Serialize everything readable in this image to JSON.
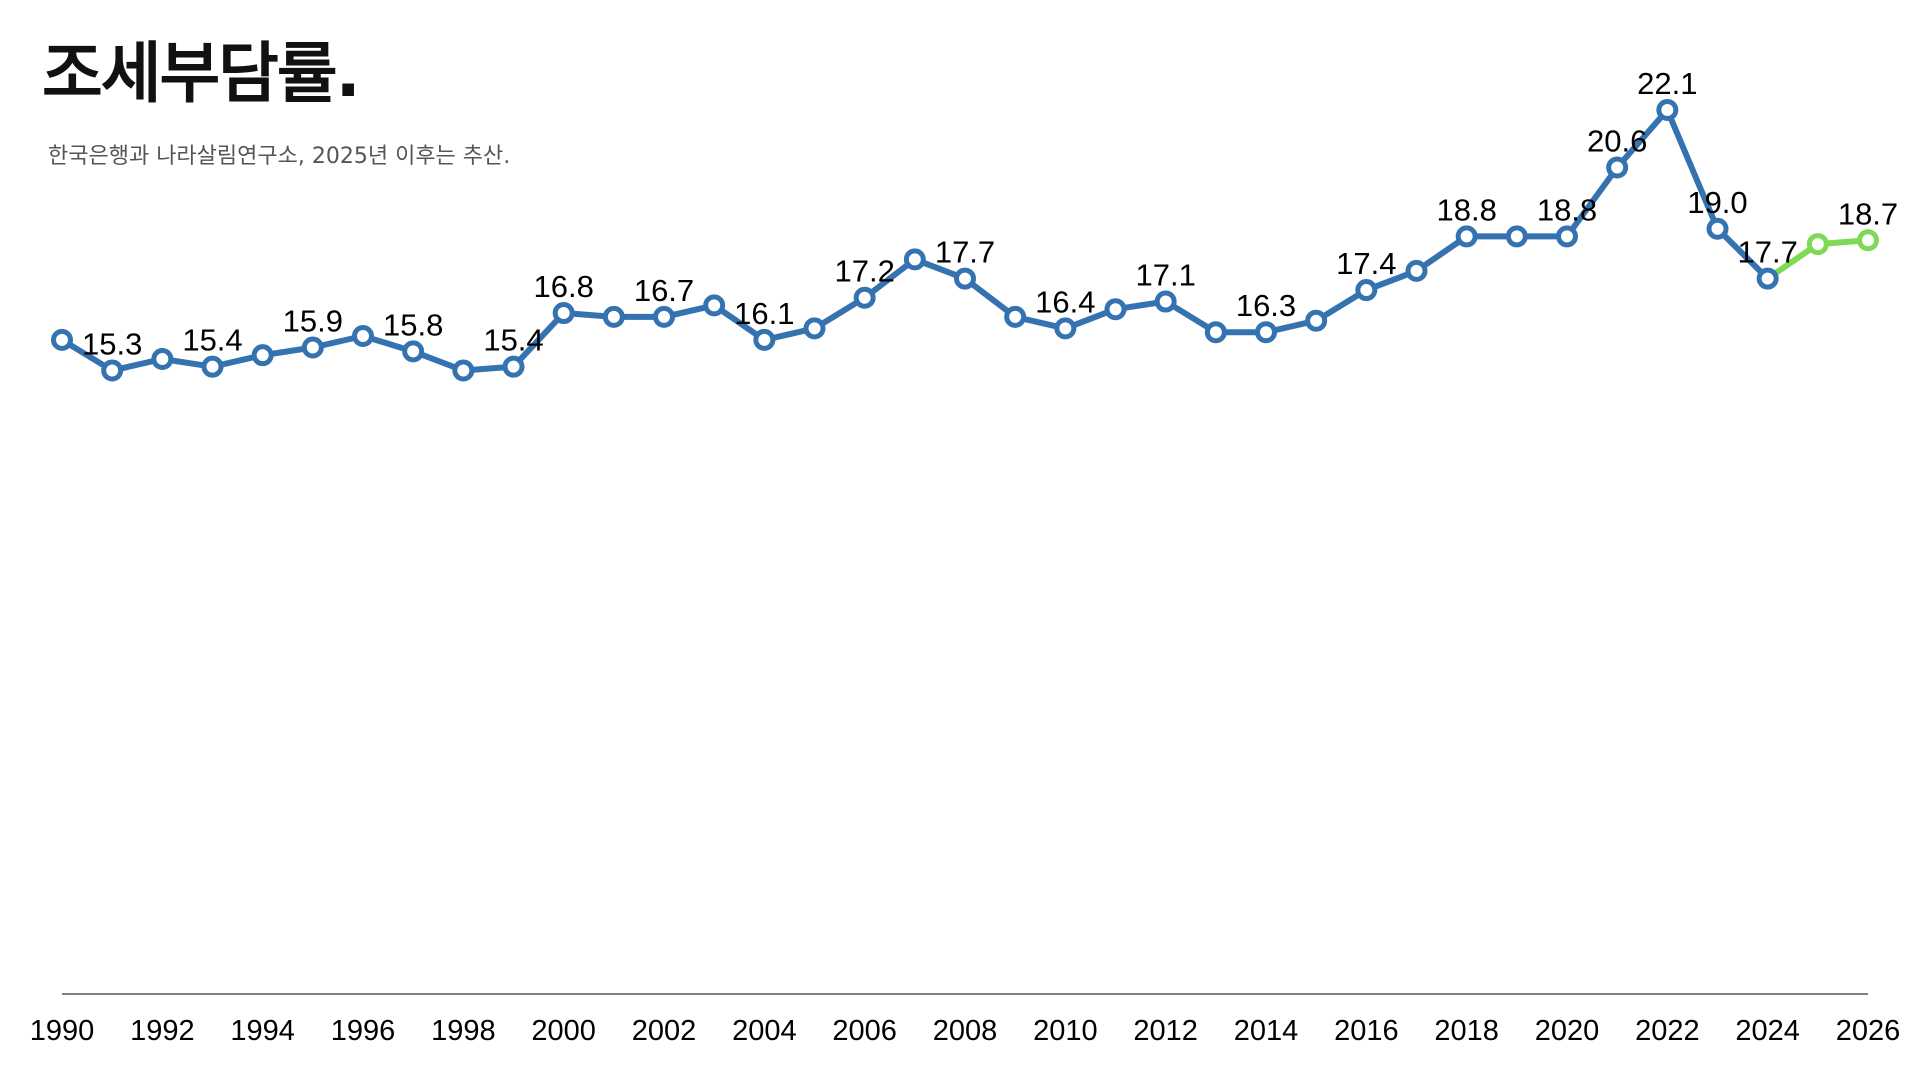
{
  "chart_data": {
    "type": "line",
    "title": "조세부담률.",
    "subtitle": "한국은행과 나라살림연구소, 2025년 이후는 추산.",
    "xlabel": "",
    "ylabel": "",
    "xlim": [
      1990,
      2026
    ],
    "ylim": [
      15.0,
      22.1
    ],
    "x_ticks": [
      "1990",
      "1992",
      "1994",
      "1996",
      "1998",
      "2000",
      "2002",
      "2004",
      "2006",
      "2008",
      "2010",
      "2012",
      "2014",
      "2016",
      "2018",
      "2020",
      "2022",
      "2024",
      "2026"
    ],
    "grid": false,
    "legend": "none",
    "series": [
      {
        "color": "#3572b0",
        "x": [
          1990,
          1991,
          1992,
          1993,
          1994,
          1995,
          1996,
          1997,
          1998,
          1999,
          2000,
          2001,
          2002,
          2003,
          2004,
          2005,
          2006,
          2007,
          2008,
          2009,
          2010,
          2011,
          2012,
          2013,
          2014,
          2015,
          2016,
          2017,
          2018,
          2019,
          2020,
          2021,
          2022,
          2023,
          2024
        ],
        "values": [
          16.1,
          15.3,
          15.6,
          15.4,
          15.7,
          15.9,
          16.2,
          15.8,
          15.3,
          15.4,
          16.8,
          16.7,
          16.7,
          17.0,
          16.1,
          16.4,
          17.2,
          18.2,
          17.7,
          16.7,
          16.4,
          16.9,
          17.1,
          16.3,
          16.3,
          16.6,
          17.4,
          17.9,
          18.8,
          18.8,
          18.8,
          20.6,
          22.1,
          19.0,
          17.7
        ]
      },
      {
        "color": "#7ed957",
        "x": [
          2024,
          2025,
          2026
        ],
        "values": [
          17.7,
          18.6,
          18.7
        ]
      }
    ],
    "data_labels": [
      {
        "x": 1991,
        "text": "15.3"
      },
      {
        "x": 1993,
        "text": "15.4"
      },
      {
        "x": 1995,
        "text": "15.9"
      },
      {
        "x": 1997,
        "text": "15.8"
      },
      {
        "x": 1999,
        "text": "15.4"
      },
      {
        "x": 2000,
        "text": "16.8"
      },
      {
        "x": 2002,
        "text": "16.7"
      },
      {
        "x": 2004,
        "text": "16.1"
      },
      {
        "x": 2006,
        "text": "17.2"
      },
      {
        "x": 2008,
        "text": "17.7"
      },
      {
        "x": 2010,
        "text": "16.4"
      },
      {
        "x": 2012,
        "text": "17.1"
      },
      {
        "x": 2014,
        "text": "16.3"
      },
      {
        "x": 2016,
        "text": "17.4"
      },
      {
        "x": 2018,
        "text": "18.8"
      },
      {
        "x": 2020,
        "text": "18.8"
      },
      {
        "x": 2021,
        "text": "20.6"
      },
      {
        "x": 2022,
        "text": "22.1"
      },
      {
        "x": 2023,
        "text": "19.0"
      },
      {
        "x": 2024,
        "text": "17.7"
      },
      {
        "x": 2026,
        "text": "18.7"
      }
    ]
  }
}
